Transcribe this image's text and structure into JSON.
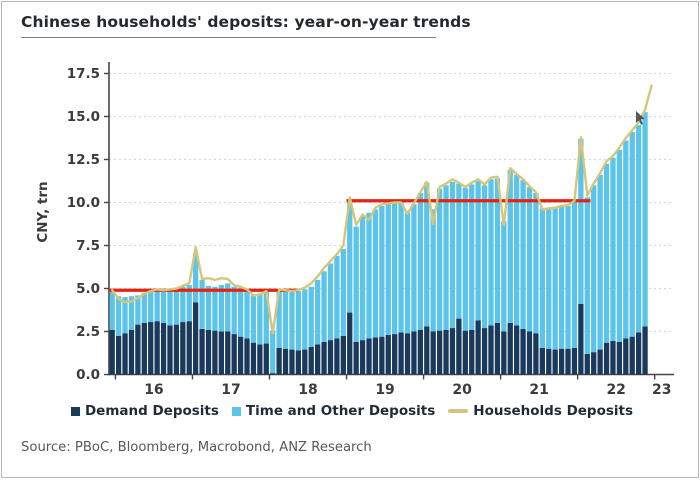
{
  "title": "Chinese households' deposits: year-on-year trends",
  "source": "Source: PBoC, Bloomberg, Macrobond, ANZ Research",
  "colors": {
    "demand_bar": "#1a3a5c",
    "time_bar": "#5cc3e9",
    "households_line": "#d6c67b",
    "red_line": "#e42313",
    "grid": "#ccd9e4",
    "axis": "#454545",
    "tick_text": "#3b3b3b"
  },
  "chart_data": {
    "type": "bar",
    "subtype": "stacked-monthly-bars-with-line",
    "title": "Chinese households' deposits: year-on-year trends",
    "ylabel": "CNY, trn",
    "ylim": [
      0,
      18.1
    ],
    "grid": "horizontal-dashed",
    "start_month": "2015-12",
    "frequency": "monthly",
    "x_tick_labels": [
      "16",
      "17",
      "18",
      "19",
      "20",
      "21",
      "22",
      "23"
    ],
    "y_ticks": [
      0,
      2.5,
      5,
      7.5,
      10,
      12.5,
      15,
      17.5
    ],
    "y_tick_labels": [
      "0.0",
      "2.5",
      "5.0",
      "7.5",
      "10.0",
      "12.5",
      "15.0",
      "17.5"
    ],
    "legend": [
      "Demand Deposits",
      "Time and Other Deposits",
      "Households Deposits"
    ],
    "series": [
      {
        "name": "Demand Deposits",
        "type": "bar-stack-bottom",
        "values": [
          2.6,
          2.25,
          2.4,
          2.6,
          2.9,
          3.0,
          3.05,
          3.1,
          3.0,
          2.85,
          2.9,
          3.05,
          3.1,
          4.2,
          2.65,
          2.6,
          2.55,
          2.5,
          2.5,
          2.35,
          2.2,
          2.1,
          1.85,
          1.75,
          1.8,
          0.08,
          1.55,
          1.5,
          1.45,
          1.4,
          1.45,
          1.6,
          1.75,
          1.9,
          2.0,
          2.1,
          2.25,
          3.6,
          1.9,
          2.0,
          2.1,
          2.15,
          2.2,
          2.3,
          2.35,
          2.45,
          2.4,
          2.5,
          2.6,
          2.8,
          2.5,
          2.55,
          2.6,
          2.7,
          3.25,
          2.55,
          2.6,
          3.15,
          2.7,
          2.85,
          3.0,
          2.5,
          3.0,
          2.85,
          2.65,
          2.5,
          2.4,
          1.55,
          1.5,
          1.45,
          1.5,
          1.5,
          1.55,
          4.1,
          1.2,
          1.3,
          1.45,
          1.85,
          1.95,
          1.9,
          2.1,
          2.2,
          2.45,
          2.8
        ]
      },
      {
        "name": "Time and Other Deposits",
        "type": "bar-stack-top",
        "values": [
          2.25,
          2.3,
          2.1,
          1.95,
          1.7,
          1.75,
          1.8,
          1.8,
          1.9,
          2.1,
          2.1,
          2.05,
          2.1,
          2.85,
          2.85,
          2.55,
          2.55,
          2.7,
          2.8,
          2.75,
          2.85,
          2.8,
          2.75,
          2.95,
          3.05,
          2.47,
          3.35,
          3.35,
          3.35,
          3.45,
          3.5,
          3.5,
          3.75,
          4.1,
          4.45,
          4.8,
          5.05,
          6.6,
          6.7,
          7.2,
          7.3,
          7.45,
          7.6,
          7.6,
          7.6,
          7.55,
          7.1,
          7.4,
          7.95,
          8.35,
          7.1,
          8.25,
          8.4,
          8.5,
          7.85,
          8.3,
          8.45,
          8.1,
          8.3,
          8.5,
          8.4,
          6.4,
          8.9,
          8.75,
          8.65,
          8.4,
          8.15,
          8.1,
          8.1,
          8.25,
          8.25,
          8.3,
          8.5,
          9.6,
          9.1,
          9.7,
          10.15,
          10.4,
          10.65,
          11.15,
          11.5,
          11.9,
          12.05,
          12.45
        ]
      },
      {
        "name": "Households Deposits",
        "type": "line",
        "note": "last point extends one month beyond final bar",
        "values": [
          4.9,
          4.4,
          4.2,
          4.25,
          4.45,
          4.7,
          4.85,
          4.95,
          4.9,
          4.95,
          5.0,
          5.15,
          5.3,
          7.4,
          5.55,
          5.6,
          5.5,
          5.6,
          5.55,
          5.2,
          5.1,
          4.95,
          4.6,
          4.65,
          4.85,
          2.4,
          4.95,
          4.9,
          4.85,
          4.9,
          5.05,
          5.3,
          5.7,
          6.2,
          6.6,
          7.0,
          7.5,
          10.3,
          8.7,
          9.3,
          9.0,
          9.7,
          9.9,
          9.95,
          10.0,
          10.0,
          9.35,
          9.95,
          10.6,
          11.2,
          8.75,
          10.9,
          11.1,
          11.35,
          11.15,
          10.9,
          11.15,
          11.35,
          11.05,
          11.45,
          11.5,
          8.7,
          12.0,
          11.65,
          11.35,
          10.95,
          10.6,
          9.6,
          9.65,
          9.7,
          9.8,
          9.85,
          10.1,
          13.8,
          10.4,
          11.1,
          11.7,
          12.4,
          12.7,
          13.2,
          13.75,
          14.2,
          14.65,
          15.4,
          16.8
        ]
      }
    ],
    "red_reference_lines": [
      {
        "value": 4.9,
        "from_month_index": 0,
        "to_month_index": 29.5
      },
      {
        "value": 10.1,
        "from_month_index": 37,
        "to_month_index": 75
      }
    ],
    "legend_position": "bottom-center"
  }
}
